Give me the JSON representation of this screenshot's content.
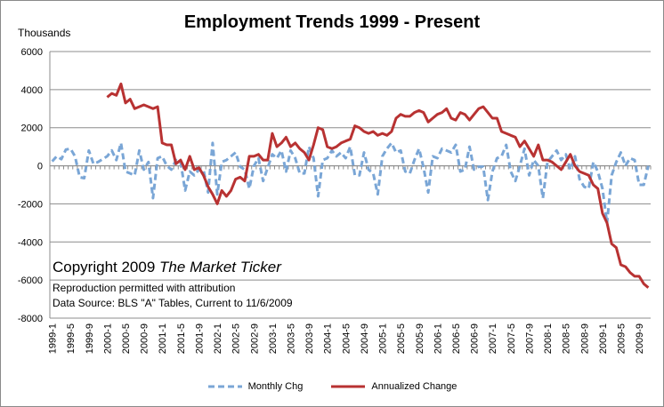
{
  "chart_data": {
    "type": "line",
    "title": "Employment Trends 1999 - Present",
    "ylabel": "Thousands",
    "xlabel": "",
    "ylim": [
      -8000,
      6000
    ],
    "yticks": [
      -8000,
      -6000,
      -4000,
      -2000,
      0,
      2000,
      4000,
      6000
    ],
    "grid": "horizontal",
    "legend": "bottom",
    "x_tick_labels": [
      "1999-1",
      "1999-5",
      "1999-9",
      "2000-1",
      "2000-5",
      "2000-9",
      "2001-1",
      "2001-5",
      "2001-9",
      "2002-1",
      "2002-5",
      "2002-9",
      "2003-1",
      "2003-5",
      "2003-9",
      "2004-1",
      "2004-5",
      "2004-9",
      "2005-1",
      "2005-5",
      "2005-9",
      "2006-1",
      "2006-5",
      "2006-9",
      "2007-1",
      "2007-5",
      "2007-9",
      "2008-1",
      "2008-5",
      "2008-9",
      "2009-1",
      "2009-5",
      "2009-9"
    ],
    "series": [
      {
        "name": "Monthly Chg",
        "color": "#7aa6d6",
        "style": "dashed",
        "values": [
          230,
          500,
          350,
          850,
          900,
          500,
          -600,
          -650,
          800,
          100,
          200,
          350,
          500,
          800,
          300,
          1200,
          -300,
          -400,
          -500,
          800,
          -200,
          200,
          -1700,
          400,
          500,
          0,
          -200,
          300,
          200,
          -1300,
          -300,
          -500,
          -200,
          -200,
          -1400,
          1200,
          -1500,
          200,
          300,
          500,
          700,
          -50,
          -200,
          -1200,
          0,
          400,
          -800,
          -100,
          600,
          400,
          800,
          -300,
          800,
          400,
          -400,
          -400,
          1000,
          400,
          -1600,
          300,
          400,
          800,
          500,
          700,
          400,
          1000,
          -500,
          -500,
          700,
          -200,
          -400,
          -1500,
          500,
          900,
          1200,
          700,
          800,
          -300,
          -400,
          300,
          900,
          -100,
          -1400,
          500,
          400,
          900,
          800,
          700,
          1100,
          -300,
          -200,
          1000,
          -200,
          -50,
          -50,
          -1800,
          -300,
          400,
          500,
          1100,
          -300,
          -800,
          0,
          900,
          -500,
          300,
          0,
          -1700,
          200,
          500,
          800,
          300,
          600,
          -200,
          500,
          -700,
          -1100,
          -1200,
          200,
          -300,
          -1200,
          -3000,
          -500,
          200,
          700,
          0,
          400,
          300,
          -1000,
          -1000,
          0
        ]
      },
      {
        "name": "Annualized Change",
        "color": "#b83232",
        "style": "solid",
        "values": [
          null,
          null,
          null,
          null,
          null,
          null,
          null,
          null,
          null,
          null,
          null,
          null,
          3600,
          3800,
          3700,
          4300,
          3300,
          3500,
          3000,
          3100,
          3200,
          3100,
          3000,
          3100,
          1200,
          1100,
          1100,
          100,
          300,
          -200,
          500,
          -200,
          -100,
          -500,
          -1100,
          -1500,
          -2000,
          -1300,
          -1600,
          -1300,
          -700,
          -600,
          -800,
          500,
          500,
          600,
          300,
          300,
          1700,
          1000,
          1200,
          1500,
          1000,
          1200,
          900,
          700,
          300,
          1100,
          2000,
          1900,
          1000,
          900,
          1000,
          1200,
          1300,
          1400,
          2100,
          2000,
          1800,
          1700,
          1800,
          1600,
          1700,
          1600,
          1800,
          2500,
          2700,
          2600,
          2600,
          2800,
          2900,
          2800,
          2300,
          2500,
          2700,
          2800,
          3000,
          2500,
          2400,
          2800,
          2700,
          2400,
          2700,
          3000,
          3100,
          2800,
          2500,
          2500,
          1800,
          1700,
          1600,
          1500,
          1000,
          1300,
          900,
          500,
          1100,
          300,
          300,
          200,
          0,
          -200,
          200,
          600,
          0,
          -300,
          -400,
          -500,
          -1000,
          -1200,
          -2500,
          -3000,
          -4100,
          -4300,
          -5200,
          -5300,
          -5600,
          -5800,
          -5800,
          -6200,
          -6400
        ]
      }
    ],
    "annotations": {
      "copyright_prefix": "Copyright 2009",
      "copyright_publisher": "The Market Ticker",
      "reproduction": "Reproduction permitted with attribution",
      "source": "Data Source: BLS \"A\" Tables, Current to 11/6/2009"
    }
  }
}
